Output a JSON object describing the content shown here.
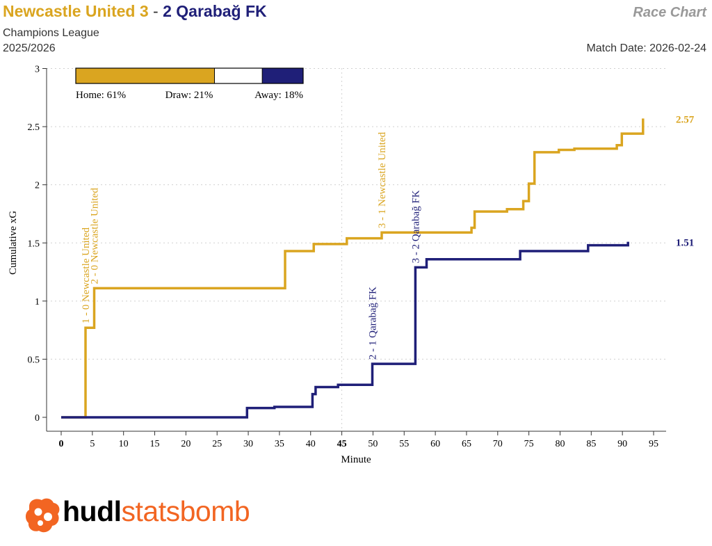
{
  "header": {
    "home_title": "Newcastle United 3",
    "title_sep": " - ",
    "away_title": "2 Qarabağ FK",
    "competition": "Champions League",
    "season": "2025/2026",
    "chart_label": "Race Chart",
    "match_date": "Match Date: 2026-02-24"
  },
  "colors": {
    "home": "#DAA520",
    "away": "#1F1F78",
    "draw": "#FFFFFF",
    "grid": "#D0D0D0",
    "axis": "#333333"
  },
  "chart_data": {
    "type": "line",
    "xlabel": "Minute",
    "ylabel": "Cumulative xG",
    "xlim": [
      0,
      97
    ],
    "ylim": [
      0,
      3
    ],
    "x_ticks": [
      0,
      5,
      10,
      15,
      20,
      25,
      30,
      35,
      40,
      45,
      50,
      55,
      60,
      65,
      70,
      75,
      80,
      85,
      90,
      95
    ],
    "y_ticks": [
      0,
      0.5,
      1,
      1.5,
      2,
      2.5,
      3
    ],
    "y_tick_labels": [
      "0",
      "0.5",
      "1",
      "1.5",
      "2",
      "2.5",
      "3"
    ],
    "bold_x_ticks": [
      0,
      45
    ],
    "grid": true,
    "legend_bar": {
      "home_pct": 61,
      "draw_pct": 21,
      "away_pct": 18,
      "labels": [
        "Home: 61%",
        "Draw: 21%",
        "Away: 18%"
      ]
    },
    "series": [
      {
        "team": "home",
        "final_label": "2.57",
        "points": [
          [
            0,
            0
          ],
          [
            3.9,
            0
          ],
          [
            3.9,
            0.77
          ],
          [
            5.3,
            0.77
          ],
          [
            5.3,
            1.11
          ],
          [
            35.9,
            1.11
          ],
          [
            35.9,
            1.43
          ],
          [
            40.5,
            1.43
          ],
          [
            40.5,
            1.49
          ],
          [
            45.8,
            1.49
          ],
          [
            45.8,
            1.54
          ],
          [
            51.4,
            1.54
          ],
          [
            51.4,
            1.59
          ],
          [
            65.8,
            1.59
          ],
          [
            65.8,
            1.63
          ],
          [
            66.3,
            1.63
          ],
          [
            66.3,
            1.77
          ],
          [
            71.5,
            1.77
          ],
          [
            71.5,
            1.79
          ],
          [
            74.1,
            1.79
          ],
          [
            74.1,
            1.86
          ],
          [
            75,
            1.86
          ],
          [
            75,
            2.01
          ],
          [
            75.9,
            2.01
          ],
          [
            75.9,
            2.28
          ],
          [
            79.8,
            2.28
          ],
          [
            79.8,
            2.3
          ],
          [
            82.3,
            2.3
          ],
          [
            82.3,
            2.31
          ],
          [
            89.1,
            2.31
          ],
          [
            89.1,
            2.34
          ],
          [
            89.9,
            2.34
          ],
          [
            89.9,
            2.44
          ],
          [
            93.3,
            2.44
          ],
          [
            93.3,
            2.57
          ]
        ],
        "goals": [
          {
            "minute": 3.9,
            "xg": 0.77,
            "text": "1 - 0 Newcastle United"
          },
          {
            "minute": 5.3,
            "xg": 1.11,
            "text": "2 - 0 Newcastle United"
          },
          {
            "minute": 51.4,
            "xg": 1.59,
            "text": "3 - 1 Newcastle United"
          }
        ]
      },
      {
        "team": "away",
        "final_label": "1.51",
        "points": [
          [
            0,
            0
          ],
          [
            29.8,
            0
          ],
          [
            29.8,
            0.08
          ],
          [
            34.2,
            0.08
          ],
          [
            34.2,
            0.09
          ],
          [
            40.3,
            0.09
          ],
          [
            40.3,
            0.2
          ],
          [
            40.8,
            0.2
          ],
          [
            40.8,
            0.26
          ],
          [
            44.4,
            0.26
          ],
          [
            44.4,
            0.28
          ],
          [
            49.9,
            0.28
          ],
          [
            49.9,
            0.46
          ],
          [
            56.8,
            0.46
          ],
          [
            56.8,
            1.29
          ],
          [
            58.6,
            1.29
          ],
          [
            58.6,
            1.36
          ],
          [
            73.6,
            1.36
          ],
          [
            73.6,
            1.43
          ],
          [
            84.5,
            1.43
          ],
          [
            84.5,
            1.48
          ],
          [
            90.9,
            1.48
          ],
          [
            90.9,
            1.51
          ]
        ],
        "goals": [
          {
            "minute": 49.9,
            "xg": 0.46,
            "text": "2 - 1 Qarabağ FK"
          },
          {
            "minute": 56.8,
            "xg": 1.29,
            "text": "3 - 2 Qarabağ FK"
          }
        ]
      }
    ]
  },
  "branding": {
    "word1": "hudl",
    "word2": "statsbomb",
    "logo_icon": "statsbomb-logo-icon"
  }
}
